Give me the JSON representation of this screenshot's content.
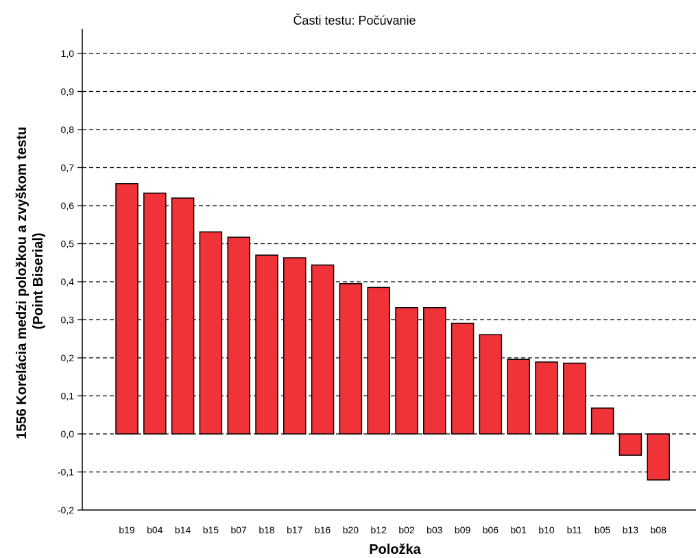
{
  "chart_data": {
    "type": "bar",
    "title": "Časti testu: Počúvanie",
    "xlabel": "Položka",
    "ylabel_lines": [
      "1556 Korelácia medzi položkou a zvyškom testu",
      "(Point Biserial)"
    ],
    "ylim": [
      -0.2,
      1.05
    ],
    "yticks": [
      "1,0",
      "0,9",
      "0,8",
      "0,7",
      "0,6",
      "0,5",
      "0,4",
      "0,3",
      "0,2",
      "0,1",
      "0,0",
      "-0,1",
      "-0,2"
    ],
    "ytick_values": [
      1.0,
      0.9,
      0.8,
      0.7,
      0.6,
      0.5,
      0.4,
      0.3,
      0.2,
      0.1,
      0.0,
      -0.1,
      -0.2
    ],
    "grid": "dashed-horizontal",
    "categories": [
      "b19",
      "b04",
      "b14",
      "b15",
      "b07",
      "b18",
      "b17",
      "b16",
      "b20",
      "b12",
      "b02",
      "b03",
      "b09",
      "b06",
      "b01",
      "b10",
      "b11",
      "b05",
      "b13",
      "b08"
    ],
    "values": [
      0.658,
      0.633,
      0.62,
      0.531,
      0.517,
      0.47,
      0.463,
      0.444,
      0.395,
      0.385,
      0.332,
      0.332,
      0.291,
      0.261,
      0.196,
      0.189,
      0.186,
      0.068,
      -0.056,
      -0.121
    ],
    "bar_color": "#ef3339",
    "bar_stroke": "#000000"
  }
}
